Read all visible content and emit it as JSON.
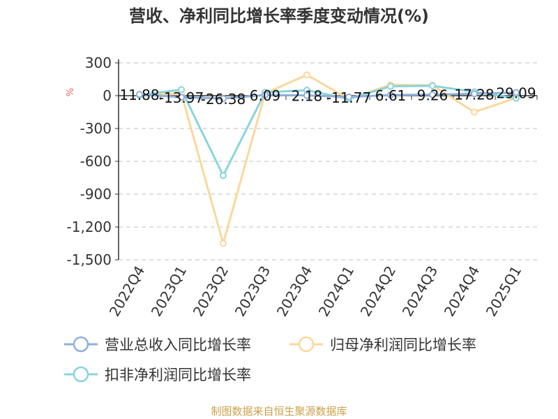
{
  "chart_data": {
    "type": "line",
    "title": "营收、净利同比增长率季度变动情况(%)",
    "ylabel": "%",
    "xlabel": "",
    "categories": [
      "2022Q4",
      "2023Q1",
      "2023Q2",
      "2023Q3",
      "2023Q4",
      "2024Q1",
      "2024Q2",
      "2024Q3",
      "2024Q4",
      "2025Q1"
    ],
    "ylim": [
      -1500,
      300
    ],
    "yticks": [
      300,
      0,
      -300,
      -600,
      -900,
      -1200,
      -1500
    ],
    "ytick_labels": [
      "300",
      "0",
      "-300",
      "-600",
      "-900",
      "-1,200",
      "-1,500"
    ],
    "grid": true,
    "legend_position": "bottom",
    "series": [
      {
        "name": "营业总收入同比增长率",
        "color": "#8fb0dc",
        "values": [
          11.88,
          -13.97,
          -26.38,
          6.09,
          2.18,
          -11.77,
          6.61,
          9.26,
          17.28,
          29.09
        ],
        "labels": [
          "11.88",
          "-13.97",
          "-26.38",
          "6.09",
          "2.18",
          "-11.77",
          "6.61",
          "9.26",
          "17.28",
          "29.09"
        ]
      },
      {
        "name": "归母净利润同比增长率",
        "color": "#fad79b",
        "values": [
          5,
          20,
          -1350,
          20,
          190,
          -30,
          100,
          95,
          -150,
          -20
        ]
      },
      {
        "name": "扣非净利润同比增长率",
        "color": "#88d5da",
        "values": [
          5,
          55,
          -730,
          30,
          50,
          -30,
          85,
          90,
          35,
          -25
        ]
      }
    ]
  },
  "footer": {
    "source": "制图数据来自恒生聚源数据库",
    "source_color": "#c9a24a"
  }
}
